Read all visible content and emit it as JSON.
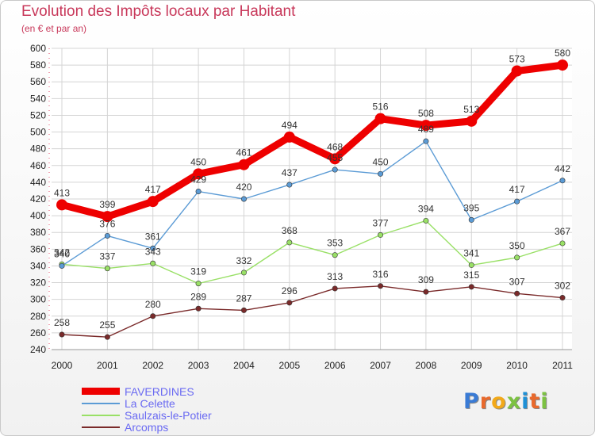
{
  "title": "Evolution des Impôts locaux par Habitant",
  "subtitle": "(en € et par an)",
  "logo": {
    "text": "Proxiti"
  },
  "chart_data": {
    "type": "line",
    "title": "Evolution des Impôts locaux par Habitant",
    "subtitle": "(en € et par an)",
    "categories": [
      "2000",
      "2001",
      "2002",
      "2003",
      "2004",
      "2005",
      "2006",
      "2007",
      "2008",
      "2009",
      "2010",
      "2011"
    ],
    "ylim": [
      240,
      600
    ],
    "y_ticks": [
      240,
      260,
      280,
      300,
      320,
      340,
      360,
      380,
      400,
      420,
      440,
      460,
      480,
      500,
      520,
      540,
      560,
      580,
      600
    ],
    "grid": true,
    "legend_position": "bottom-left",
    "series": [
      {
        "name": "FAVERDINES",
        "color": "#ee0000",
        "values": [
          413,
          399,
          417,
          450,
          461,
          494,
          468,
          516,
          508,
          513,
          573,
          580
        ]
      },
      {
        "name": "La Celette",
        "color": "#5b9bd5",
        "values": [
          340,
          376,
          361,
          429,
          420,
          437,
          455,
          450,
          489,
          395,
          417,
          442
        ]
      },
      {
        "name": "Saulzais-le-Potier",
        "color": "#99e066",
        "values": [
          342,
          337,
          343,
          319,
          332,
          368,
          353,
          377,
          394,
          341,
          350,
          367
        ]
      },
      {
        "name": "Arcomps",
        "color": "#7a2a2a",
        "values": [
          258,
          255,
          280,
          289,
          287,
          296,
          313,
          316,
          309,
          315,
          307,
          302
        ]
      }
    ]
  }
}
